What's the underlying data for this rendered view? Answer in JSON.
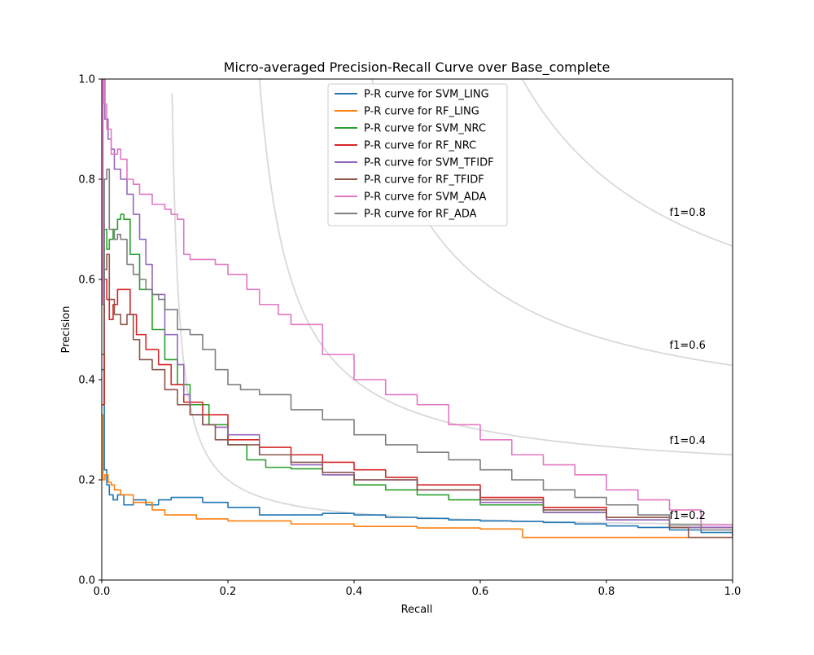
{
  "chart_data": {
    "type": "line",
    "title": "Micro-averaged Precision-Recall Curve over Base_complete",
    "xlabel": "Recall",
    "ylabel": "Precision",
    "xlim": [
      0.0,
      1.0
    ],
    "ylim": [
      0.0,
      1.0
    ],
    "xticks": [
      "0.0",
      "0.2",
      "0.4",
      "0.6",
      "0.8",
      "1.0"
    ],
    "yticks": [
      "0.0",
      "0.2",
      "0.4",
      "0.6",
      "0.8",
      "1.0"
    ],
    "grid": false,
    "legend_position": "top-center",
    "iso_f1": [
      {
        "f1": 0.2,
        "label": "f1=0.2",
        "color": "#d9d9d9"
      },
      {
        "f1": 0.4,
        "label": "f1=0.4",
        "color": "#d9d9d9"
      },
      {
        "f1": 0.6,
        "label": "f1=0.6",
        "color": "#d9d9d9"
      },
      {
        "f1": 0.8,
        "label": "f1=0.8",
        "color": "#d9d9d9"
      }
    ],
    "series": [
      {
        "name": "P-R curve for SVM_LING",
        "color": "#1f77b4",
        "x": [
          0.0,
          0.004,
          0.008,
          0.012,
          0.018,
          0.025,
          0.035,
          0.05,
          0.07,
          0.09,
          0.11,
          0.13,
          0.16,
          0.2,
          0.25,
          0.3,
          0.35,
          0.4,
          0.45,
          0.5,
          0.55,
          0.6,
          0.65,
          0.7,
          0.75,
          0.8,
          0.85,
          0.9,
          0.95,
          1.0
        ],
        "y": [
          0.42,
          0.22,
          0.19,
          0.17,
          0.16,
          0.17,
          0.15,
          0.16,
          0.15,
          0.16,
          0.165,
          0.165,
          0.155,
          0.145,
          0.13,
          0.13,
          0.133,
          0.13,
          0.125,
          0.123,
          0.12,
          0.118,
          0.117,
          0.115,
          0.112,
          0.108,
          0.105,
          0.1,
          0.095,
          0.088
        ]
      },
      {
        "name": "P-R curve for RF_LING",
        "color": "#ff7f0e",
        "x": [
          0.0,
          0.002,
          0.005,
          0.01,
          0.015,
          0.02,
          0.03,
          0.05,
          0.08,
          0.1,
          0.15,
          0.2,
          0.3,
          0.4,
          0.5,
          0.6,
          0.665,
          0.667,
          0.8,
          0.9,
          1.0
        ],
        "y": [
          0.33,
          0.2,
          0.21,
          0.195,
          0.19,
          0.18,
          0.17,
          0.155,
          0.14,
          0.13,
          0.122,
          0.118,
          0.112,
          0.107,
          0.104,
          0.102,
          0.101,
          0.085,
          0.085,
          0.085,
          0.085
        ]
      },
      {
        "name": "P-R curve for SVM_NRC",
        "color": "#2ca02c",
        "x": [
          0.0,
          0.004,
          0.008,
          0.012,
          0.018,
          0.025,
          0.03,
          0.035,
          0.045,
          0.06,
          0.08,
          0.1,
          0.12,
          0.14,
          0.17,
          0.2,
          0.23,
          0.26,
          0.3,
          0.35,
          0.4,
          0.45,
          0.5,
          0.55,
          0.6,
          0.7,
          0.8,
          0.9,
          1.0
        ],
        "y": [
          0.35,
          0.7,
          0.66,
          0.68,
          0.7,
          0.72,
          0.73,
          0.72,
          0.65,
          0.58,
          0.5,
          0.44,
          0.39,
          0.35,
          0.31,
          0.27,
          0.24,
          0.225,
          0.222,
          0.21,
          0.19,
          0.18,
          0.17,
          0.16,
          0.15,
          0.135,
          0.12,
          0.105,
          0.088
        ]
      },
      {
        "name": "P-R curve for RF_NRC",
        "color": "#d62728",
        "x": [
          0.0,
          0.004,
          0.008,
          0.012,
          0.018,
          0.025,
          0.035,
          0.045,
          0.055,
          0.07,
          0.09,
          0.11,
          0.13,
          0.16,
          0.2,
          0.25,
          0.3,
          0.35,
          0.4,
          0.45,
          0.5,
          0.6,
          0.7,
          0.8,
          0.9,
          1.0
        ],
        "y": [
          0.35,
          0.6,
          0.56,
          0.52,
          0.55,
          0.58,
          0.58,
          0.53,
          0.49,
          0.46,
          0.43,
          0.39,
          0.355,
          0.33,
          0.28,
          0.265,
          0.25,
          0.235,
          0.22,
          0.205,
          0.19,
          0.165,
          0.145,
          0.125,
          0.105,
          0.087
        ]
      },
      {
        "name": "P-R curve for SVM_TFIDF",
        "color": "#9467bd",
        "x": [
          0.0,
          0.002,
          0.005,
          0.01,
          0.015,
          0.02,
          0.03,
          0.04,
          0.05,
          0.06,
          0.07,
          0.08,
          0.1,
          0.12,
          0.13,
          0.14,
          0.16,
          0.18,
          0.2,
          0.25,
          0.3,
          0.35,
          0.4,
          0.5,
          0.6,
          0.7,
          0.8,
          0.9,
          1.0
        ],
        "y": [
          0.55,
          1.0,
          0.92,
          0.88,
          0.86,
          0.82,
          0.8,
          0.77,
          0.73,
          0.68,
          0.63,
          0.57,
          0.49,
          0.43,
          0.37,
          0.33,
          0.31,
          0.305,
          0.29,
          0.25,
          0.23,
          0.21,
          0.2,
          0.18,
          0.155,
          0.135,
          0.12,
          0.105,
          0.088
        ]
      },
      {
        "name": "P-R curve for RF_TFIDF",
        "color": "#8c564b",
        "x": [
          0.0,
          0.004,
          0.008,
          0.012,
          0.02,
          0.03,
          0.04,
          0.05,
          0.06,
          0.08,
          0.1,
          0.12,
          0.14,
          0.16,
          0.18,
          0.2,
          0.25,
          0.3,
          0.35,
          0.4,
          0.5,
          0.6,
          0.7,
          0.8,
          0.9,
          0.93,
          1.0
        ],
        "y": [
          0.45,
          0.62,
          0.65,
          0.56,
          0.53,
          0.51,
          0.53,
          0.48,
          0.44,
          0.42,
          0.38,
          0.35,
          0.33,
          0.31,
          0.28,
          0.27,
          0.25,
          0.235,
          0.215,
          0.2,
          0.18,
          0.16,
          0.14,
          0.125,
          0.105,
          0.085,
          0.085
        ]
      },
      {
        "name": "P-R curve for SVM_ADA",
        "color": "#e377c2",
        "x": [
          0.0,
          0.002,
          0.004,
          0.008,
          0.015,
          0.02,
          0.025,
          0.03,
          0.04,
          0.05,
          0.06,
          0.08,
          0.1,
          0.11,
          0.12,
          0.13,
          0.14,
          0.16,
          0.18,
          0.2,
          0.23,
          0.25,
          0.28,
          0.3,
          0.35,
          0.4,
          0.45,
          0.5,
          0.55,
          0.6,
          0.65,
          0.7,
          0.75,
          0.8,
          0.85,
          0.9,
          0.95,
          1.0
        ],
        "y": [
          0.55,
          1.0,
          0.95,
          0.9,
          0.85,
          0.85,
          0.86,
          0.84,
          0.8,
          0.79,
          0.77,
          0.75,
          0.74,
          0.73,
          0.72,
          0.65,
          0.64,
          0.64,
          0.63,
          0.61,
          0.58,
          0.55,
          0.53,
          0.51,
          0.45,
          0.4,
          0.37,
          0.35,
          0.31,
          0.28,
          0.25,
          0.23,
          0.21,
          0.18,
          0.16,
          0.14,
          0.11,
          0.09
        ]
      },
      {
        "name": "P-R curve for RF_ADA",
        "color": "#7f7f7f",
        "x": [
          0.0,
          0.004,
          0.008,
          0.012,
          0.02,
          0.025,
          0.03,
          0.04,
          0.05,
          0.06,
          0.07,
          0.08,
          0.09,
          0.1,
          0.12,
          0.14,
          0.16,
          0.18,
          0.2,
          0.22,
          0.25,
          0.3,
          0.35,
          0.4,
          0.45,
          0.5,
          0.55,
          0.6,
          0.65,
          0.7,
          0.75,
          0.8,
          0.85,
          0.9,
          0.95,
          1.0
        ],
        "y": [
          0.55,
          0.8,
          0.82,
          0.7,
          0.68,
          0.69,
          0.68,
          0.63,
          0.61,
          0.6,
          0.58,
          0.57,
          0.56,
          0.54,
          0.5,
          0.49,
          0.46,
          0.42,
          0.39,
          0.38,
          0.37,
          0.34,
          0.32,
          0.29,
          0.27,
          0.255,
          0.24,
          0.22,
          0.2,
          0.18,
          0.165,
          0.15,
          0.13,
          0.11,
          0.1,
          0.09
        ]
      }
    ]
  }
}
